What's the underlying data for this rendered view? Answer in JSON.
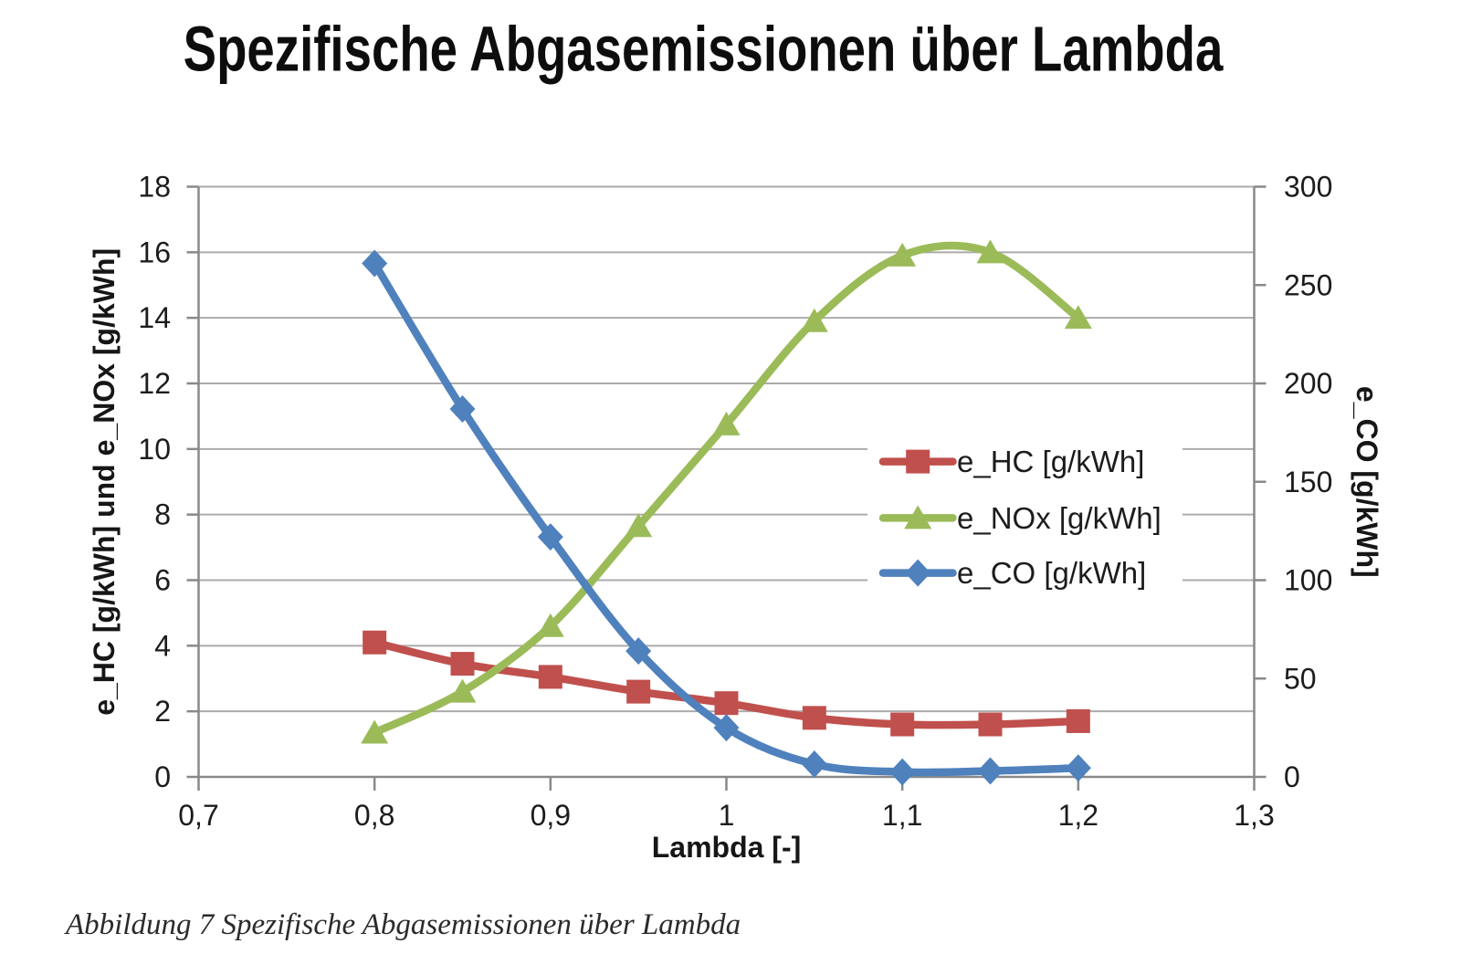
{
  "chart_data": {
    "type": "line",
    "title": "Spezifische Abgasemissionen über Lambda",
    "caption": "Abbildung 7 Spezifische Abgasemissionen über Lambda",
    "smooth": true,
    "grid": true,
    "legend_position": "middle-right",
    "x": [
      0.8,
      0.85,
      0.9,
      0.95,
      1.0,
      1.05,
      1.1,
      1.15,
      1.2
    ],
    "series": [
      {
        "name": "e_HC [g/kWh]",
        "axis": "left",
        "color": "#C0504D",
        "marker": "square",
        "values": [
          4.1,
          3.45,
          3.05,
          2.6,
          2.25,
          1.8,
          1.6,
          1.6,
          1.7
        ]
      },
      {
        "name": "e_NOx [g/kWh]",
        "axis": "left",
        "color": "#9BBB59",
        "marker": "triangle",
        "values": [
          1.35,
          2.6,
          4.6,
          7.65,
          10.75,
          13.9,
          15.9,
          16.0,
          14.0
        ]
      },
      {
        "name": "e_CO [g/kWh]",
        "axis": "right",
        "color": "#4F81BD",
        "marker": "diamond",
        "values": [
          261,
          187,
          122,
          64,
          25,
          6.5,
          2.5,
          3,
          4.5
        ]
      }
    ],
    "x_axis": {
      "title": "Lambda [-]",
      "min": 0.7,
      "max": 1.3,
      "step": 0.1,
      "tick_labels": [
        "0,7",
        "0,8",
        "0,9",
        "1",
        "1,1",
        "1,2",
        "1,3"
      ]
    },
    "y_left": {
      "title": "e_HC [g/kWh] und e_NOx [g/kWh]",
      "min": 0,
      "max": 18,
      "step": 2,
      "tick_labels": [
        "0",
        "2",
        "4",
        "6",
        "8",
        "10",
        "12",
        "14",
        "16",
        "18"
      ]
    },
    "y_right": {
      "title": "e_CO [g/kWh]",
      "min": 0,
      "max": 300,
      "step": 50,
      "tick_labels": [
        "0",
        "50",
        "100",
        "150",
        "200",
        "250",
        "300"
      ]
    },
    "colors": {
      "gridline": "#ABABAB",
      "axis_line": "#898989",
      "background": "#FFFFFF"
    }
  }
}
